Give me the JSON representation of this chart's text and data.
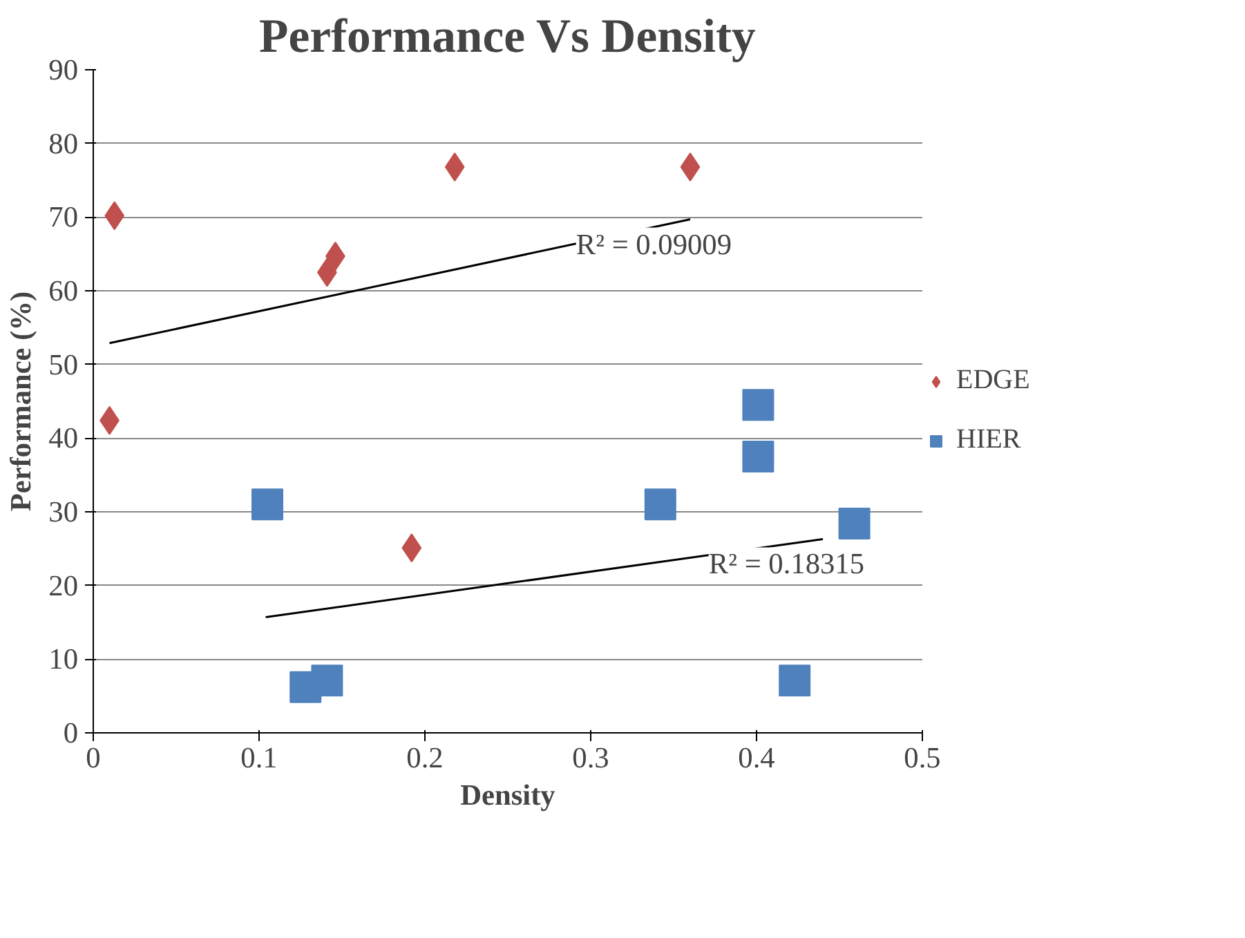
{
  "chart_data": {
    "type": "scatter",
    "title": "Performance Vs Density",
    "xlabel": "Density",
    "ylabel": "Performance (%)",
    "xlim": [
      0,
      0.5
    ],
    "xticks": [
      0,
      0.1,
      0.2,
      0.3,
      0.4,
      0.5
    ],
    "ylim": [
      0,
      90
    ],
    "yticks": [
      0,
      10,
      20,
      30,
      40,
      50,
      60,
      70,
      80,
      90
    ],
    "grid": "y",
    "legend": "right",
    "series": [
      {
        "name": "EDGE",
        "color": "#c0504d",
        "marker": "diamond",
        "x": [
          0.0128,
          0.0098,
          0.141,
          0.146,
          0.218,
          0.36,
          0.192
        ],
        "values": [
          70.2,
          42.4,
          62.5,
          64.7,
          76.8,
          76.8,
          25.1
        ]
      },
      {
        "name": "HIER",
        "color": "#4f81bd",
        "marker": "square",
        "x": [
          0.105,
          0.128,
          0.141,
          0.342,
          0.401,
          0.401,
          0.423,
          0.459
        ],
        "values": [
          31.0,
          6.2,
          7.1,
          31.0,
          44.5,
          37.5,
          7.1,
          28.4
        ]
      },
      {
        "type": "line",
        "color": "#000000",
        "marker": "none",
        "x": [
          0.0098,
          0.36
        ],
        "values": [
          52.9,
          69.7
        ]
      },
      {
        "type": "line",
        "color": "#000000",
        "marker": "none",
        "x": [
          0.104,
          0.44
        ],
        "values": [
          15.7,
          26.3
        ]
      }
    ],
    "annotations": [
      {
        "text": "R² = 0.09009",
        "x": 0.36,
        "y": 69.7
      },
      {
        "text": "R² = 0.18315",
        "x": 0.44,
        "y": 26.3
      }
    ]
  }
}
